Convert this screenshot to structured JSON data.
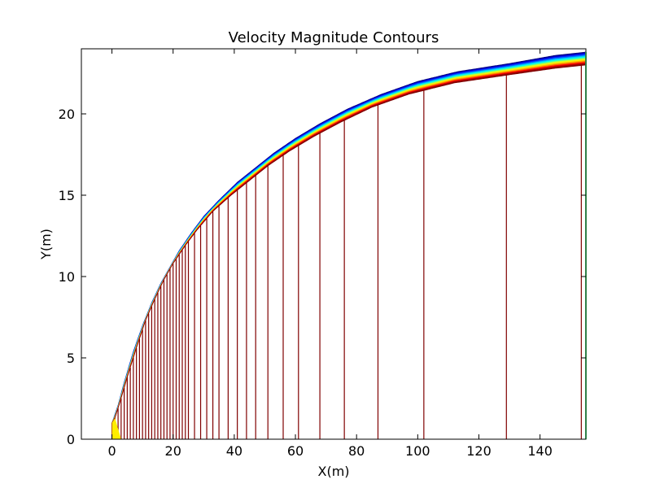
{
  "chart_data": {
    "type": "line",
    "title": "Velocity Magnitude Contours",
    "xlabel": "X(m)",
    "ylabel": "Y(m)",
    "xlim": [
      -10,
      155
    ],
    "ylim": [
      0,
      24
    ],
    "x_ticks": [
      "0",
      "20",
      "40",
      "60",
      "80",
      "100",
      "120",
      "140"
    ],
    "y_ticks": [
      "0",
      "5",
      "10",
      "15",
      "20"
    ],
    "grid": false,
    "legend": "none",
    "colormap": "jet",
    "outer_boundary": {
      "x": [
        0,
        1,
        3,
        5,
        8,
        11,
        14,
        17,
        20,
        24,
        28,
        33,
        39,
        45,
        51,
        58,
        66,
        75,
        85,
        97,
        112,
        130,
        145,
        155
      ],
      "y": [
        1,
        1.3,
        2.5,
        3.8,
        5.6,
        7.3,
        8.6,
        9.8,
        10.8,
        11.9,
        12.9,
        14.0,
        15.0,
        15.9,
        16.8,
        17.7,
        18.6,
        19.5,
        20.4,
        21.2,
        21.9,
        22.4,
        22.8,
        23.0
      ]
    },
    "inner_boundary": {
      "x": [
        0,
        2,
        4,
        7,
        10,
        13,
        16,
        19,
        22,
        26,
        30,
        35,
        41,
        47,
        53,
        60,
        68,
        77,
        88,
        100,
        113,
        130,
        145,
        155
      ],
      "y": [
        1.0,
        2.1,
        3.5,
        5.4,
        7.0,
        8.4,
        9.6,
        10.6,
        11.6,
        12.7,
        13.7,
        14.7,
        15.8,
        16.7,
        17.6,
        18.5,
        19.4,
        20.3,
        21.2,
        22.0,
        22.6,
        23.1,
        23.6,
        23.8
      ]
    },
    "vertical_lines_x": [
      0,
      1,
      2,
      3,
      4,
      5,
      6,
      7,
      8,
      9,
      10,
      11,
      12,
      13,
      14,
      15,
      16,
      17,
      18,
      19,
      20,
      21,
      22,
      23,
      24,
      25,
      27,
      29,
      31,
      33,
      35,
      38,
      41,
      44,
      47,
      51,
      56,
      61,
      68,
      76,
      87,
      102,
      129,
      153.5
    ],
    "line_color": "#800000",
    "band_colors": [
      "#800000",
      "#b20000",
      "#ff0000",
      "#ff6400",
      "#ffb000",
      "#ffee00",
      "#c8ff30",
      "#60ff90",
      "#00ffee",
      "#00c0ff",
      "#0070ff",
      "#0020ff",
      "#0000c8",
      "#000080"
    ]
  }
}
